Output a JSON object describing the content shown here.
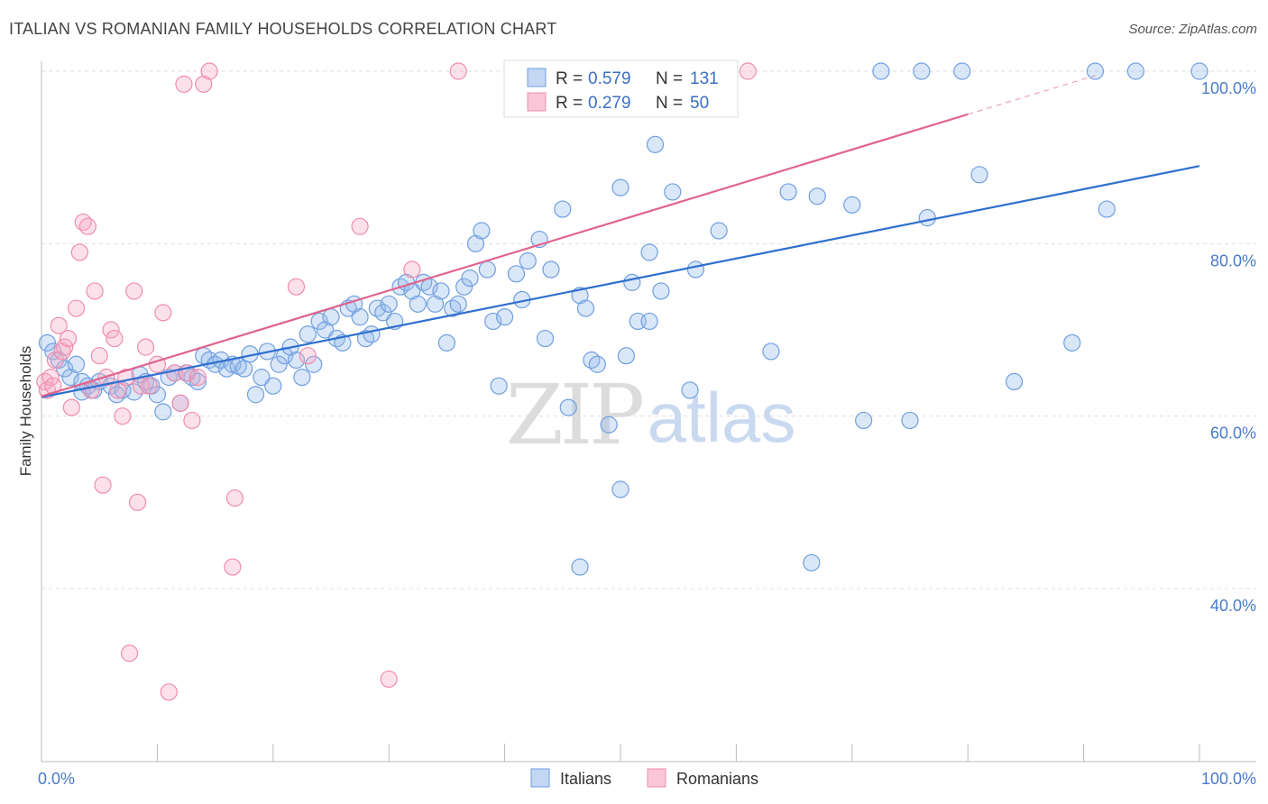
{
  "title": "ITALIAN VS ROMANIAN FAMILY HOUSEHOLDS CORRELATION CHART",
  "source": "Source: ZipAtlas.com",
  "watermark": {
    "zip": "ZIP",
    "atlas": "atlas"
  },
  "chart_data": {
    "type": "scatter",
    "ylabel": "Family Households",
    "xlim": [
      0,
      100
    ],
    "ylim": [
      20,
      101
    ],
    "x_tick_labels": [
      {
        "value": 0,
        "label": "0.0%"
      },
      {
        "value": 100,
        "label": "100.0%"
      }
    ],
    "y_tick_labels": [
      {
        "value": 40,
        "label": "40.0%"
      },
      {
        "value": 60,
        "label": "60.0%"
      },
      {
        "value": 80,
        "label": "80.0%"
      },
      {
        "value": 100,
        "label": "100.0%"
      }
    ],
    "grid": true,
    "legend_stats": [
      {
        "r_label": "R = ",
        "r_value": "0.579",
        "n_label": "N = ",
        "n_value": "131",
        "color": "#6f9fe0"
      },
      {
        "r_label": "R = ",
        "r_value": "0.279",
        "n_label": "N = ",
        "n_value": "50",
        "color": "#f08cae"
      }
    ],
    "series": [
      {
        "name": "Italians",
        "color": "#6f9fe0",
        "line_color": "#2f6fcf",
        "trend": {
          "x": [
            0,
            100
          ],
          "y": [
            62.2,
            89.0
          ]
        },
        "points": [
          [
            0.5,
            68.5
          ],
          [
            1,
            67.5
          ],
          [
            1.5,
            66.5
          ],
          [
            2,
            65.5
          ],
          [
            2.5,
            64.5
          ],
          [
            3,
            66
          ],
          [
            3.5,
            64
          ],
          [
            4,
            63.5
          ],
          [
            3.5,
            62.8
          ],
          [
            4.5,
            63
          ],
          [
            5,
            64
          ],
          [
            6,
            63.5
          ],
          [
            6.5,
            62.5
          ],
          [
            7,
            63
          ],
          [
            8,
            62.8
          ],
          [
            8.5,
            64.8
          ],
          [
            9,
            64
          ],
          [
            9.5,
            63.5
          ],
          [
            10,
            62.5
          ],
          [
            10.5,
            60.5
          ],
          [
            11,
            64.5
          ],
          [
            11.5,
            65
          ],
          [
            12,
            61.5
          ],
          [
            12.5,
            65
          ],
          [
            13,
            64.5
          ],
          [
            13.5,
            64
          ],
          [
            14,
            67
          ],
          [
            14.5,
            66.5
          ],
          [
            15,
            66
          ],
          [
            15.5,
            66.5
          ],
          [
            16,
            65.5
          ],
          [
            16.5,
            66
          ],
          [
            17,
            65.8
          ],
          [
            17.5,
            65.5
          ],
          [
            18,
            67.2
          ],
          [
            18.5,
            62.5
          ],
          [
            19,
            64.5
          ],
          [
            19.5,
            67.5
          ],
          [
            20,
            63.5
          ],
          [
            20.5,
            66
          ],
          [
            21,
            67
          ],
          [
            21.5,
            68
          ],
          [
            22,
            66.5
          ],
          [
            22.5,
            64.5
          ],
          [
            23,
            69.5
          ],
          [
            23.5,
            66
          ],
          [
            24,
            71
          ],
          [
            24.5,
            70
          ],
          [
            25,
            71.5
          ],
          [
            25.5,
            69
          ],
          [
            26,
            68.5
          ],
          [
            26.5,
            72.5
          ],
          [
            27,
            73
          ],
          [
            27.5,
            71.5
          ],
          [
            28,
            69
          ],
          [
            28.5,
            69.5
          ],
          [
            29,
            72.5
          ],
          [
            29.5,
            72
          ],
          [
            30,
            73
          ],
          [
            30.5,
            71
          ],
          [
            31,
            75
          ],
          [
            31.5,
            75.5
          ],
          [
            32,
            74.5
          ],
          [
            32.5,
            73
          ],
          [
            33,
            75.5
          ],
          [
            33.5,
            75
          ],
          [
            34,
            73
          ],
          [
            34.5,
            74.5
          ],
          [
            35,
            68.5
          ],
          [
            35.5,
            72.5
          ],
          [
            36,
            73
          ],
          [
            36.5,
            75
          ],
          [
            37,
            76
          ],
          [
            37.5,
            80
          ],
          [
            38,
            81.5
          ],
          [
            38.5,
            77
          ],
          [
            39,
            71
          ],
          [
            39.5,
            63.5
          ],
          [
            40,
            71.5
          ],
          [
            41,
            76.5
          ],
          [
            41.5,
            73.5
          ],
          [
            42,
            78
          ],
          [
            43,
            80.5
          ],
          [
            43.5,
            69
          ],
          [
            44,
            77
          ],
          [
            45,
            84
          ],
          [
            45.5,
            61
          ],
          [
            46.5,
            42.5
          ],
          [
            46.5,
            74
          ],
          [
            47,
            72.5
          ],
          [
            47.5,
            66.5
          ],
          [
            48,
            66
          ],
          [
            49,
            59
          ],
          [
            50,
            51.5
          ],
          [
            50,
            86.5
          ],
          [
            50.5,
            67
          ],
          [
            51,
            75.5
          ],
          [
            51.5,
            71
          ],
          [
            52.5,
            79
          ],
          [
            52.5,
            71
          ],
          [
            53,
            91.5
          ],
          [
            53.5,
            74.5
          ],
          [
            54.5,
            86
          ],
          [
            56,
            63
          ],
          [
            56.5,
            77
          ],
          [
            58.5,
            81.5
          ],
          [
            58.5,
            100
          ],
          [
            63,
            67.5
          ],
          [
            64.5,
            86
          ],
          [
            66.5,
            43
          ],
          [
            67,
            85.5
          ],
          [
            70,
            84.5
          ],
          [
            71,
            59.5
          ],
          [
            72.5,
            100
          ],
          [
            75,
            59.5
          ],
          [
            76,
            100
          ],
          [
            76.5,
            83
          ],
          [
            79.5,
            100
          ],
          [
            81,
            88
          ],
          [
            84,
            64
          ],
          [
            89,
            68.5
          ],
          [
            91,
            100
          ],
          [
            92,
            84
          ],
          [
            94.5,
            100
          ],
          [
            100,
            100
          ]
        ]
      },
      {
        "name": "Romanians",
        "color": "#f08cae",
        "line_color": "#e0648e",
        "trend": {
          "x": [
            0,
            80
          ],
          "y": [
            62.3,
            95.0
          ]
        },
        "trend_dashed": {
          "x": [
            80,
            91
          ],
          "y": [
            95.0,
            99.5
          ]
        },
        "points": [
          [
            0.3,
            64
          ],
          [
            0.5,
            63
          ],
          [
            0.8,
            64.5
          ],
          [
            1,
            63.5
          ],
          [
            1.2,
            66.5
          ],
          [
            1.5,
            70.5
          ],
          [
            1.8,
            67.5
          ],
          [
            2,
            68
          ],
          [
            2.3,
            69
          ],
          [
            2.6,
            61
          ],
          [
            3,
            72.5
          ],
          [
            3.3,
            79
          ],
          [
            3.6,
            82.5
          ],
          [
            4,
            82
          ],
          [
            4.3,
            63
          ],
          [
            4.6,
            74.5
          ],
          [
            5,
            67
          ],
          [
            5.3,
            52
          ],
          [
            5.6,
            64.5
          ],
          [
            6,
            70
          ],
          [
            6.3,
            69
          ],
          [
            6.6,
            63
          ],
          [
            7,
            60
          ],
          [
            7.3,
            64.5
          ],
          [
            7.6,
            32.5
          ],
          [
            8,
            74.5
          ],
          [
            8.3,
            50
          ],
          [
            8.6,
            63.5
          ],
          [
            9,
            68
          ],
          [
            9.3,
            63.5
          ],
          [
            10,
            66
          ],
          [
            10.5,
            72
          ],
          [
            11,
            28
          ],
          [
            11.5,
            65
          ],
          [
            12,
            61.5
          ],
          [
            12.3,
            98.5
          ],
          [
            12.6,
            65
          ],
          [
            13,
            59.5
          ],
          [
            13.5,
            64.5
          ],
          [
            14,
            98.5
          ],
          [
            14.5,
            100
          ],
          [
            16.5,
            42.5
          ],
          [
            16.7,
            50.5
          ],
          [
            22,
            75
          ],
          [
            23,
            67
          ],
          [
            27.5,
            82
          ],
          [
            30,
            29.5
          ],
          [
            32,
            77
          ],
          [
            36,
            100
          ],
          [
            61,
            100
          ]
        ]
      }
    ]
  }
}
